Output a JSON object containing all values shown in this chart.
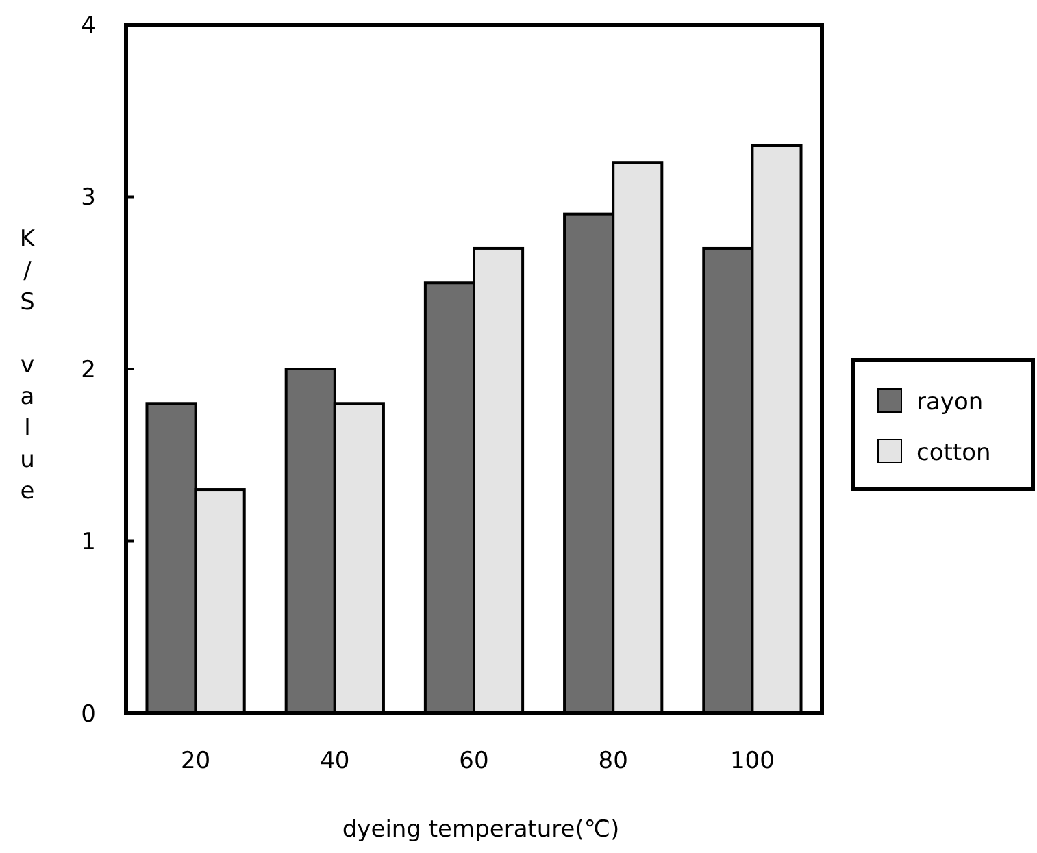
{
  "chart_data": {
    "type": "bar",
    "xlabel": "dyeing temperature(℃)",
    "ylabel": "K/S value",
    "categories": [
      "20",
      "40",
      "60",
      "80",
      "100"
    ],
    "series": [
      {
        "name": "rayon",
        "color": "#6e6e6e",
        "values": [
          1.8,
          2.0,
          2.5,
          2.9,
          2.7
        ]
      },
      {
        "name": "cotton",
        "color": "#e4e4e4",
        "values": [
          1.3,
          1.8,
          2.7,
          3.2,
          3.3
        ]
      }
    ],
    "ylim": [
      0,
      4
    ],
    "yticks": [
      0,
      1,
      2,
      3,
      4
    ],
    "grid": false,
    "legend": "right"
  }
}
